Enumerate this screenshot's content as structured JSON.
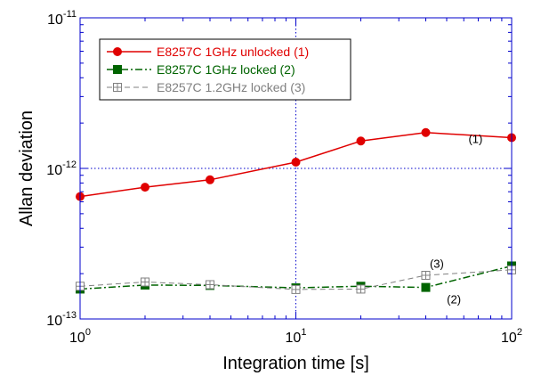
{
  "chart_data": {
    "type": "line",
    "xlabel": "Integration time [s]",
    "ylabel": "Allan deviation",
    "x_scale": "log",
    "y_scale": "log",
    "xlim": [
      1,
      100
    ],
    "ylim": [
      1e-13,
      1e-11
    ],
    "x_ticks": [
      {
        "base": "10",
        "exp": "0"
      },
      {
        "base": "10",
        "exp": "1"
      },
      {
        "base": "10",
        "exp": "2"
      }
    ],
    "y_ticks": [
      {
        "base": "10",
        "exp": "-13"
      },
      {
        "base": "10",
        "exp": "-12"
      },
      {
        "base": "10",
        "exp": "-11"
      }
    ],
    "grid": "dotted lines at x=10 and y=1e-12",
    "legend_position": "top-left",
    "series": [
      {
        "name": "E8257C 1GHz unlocked (1)",
        "color": "#e00000",
        "marker": "filled-circle",
        "x": [
          1,
          2,
          4,
          10,
          20,
          40,
          100
        ],
        "y": [
          6.5e-13,
          7.5e-13,
          8.4e-13,
          1.1e-12,
          1.52e-12,
          1.73e-12,
          1.6e-12
        ]
      },
      {
        "name": "E8257C 1GHz locked (2)",
        "color": "#006400",
        "marker": "filled-square",
        "x": [
          1,
          2,
          4,
          10,
          20,
          40,
          100
        ],
        "y": [
          1.58e-13,
          1.68e-13,
          1.67e-13,
          1.61e-13,
          1.65e-13,
          1.62e-13,
          2.25e-13
        ]
      },
      {
        "name": "E8257C 1.2GHz locked (3)",
        "color": "#808080",
        "marker": "open-square-cross",
        "x": [
          1,
          2,
          4,
          10,
          20,
          40,
          100
        ],
        "y": [
          1.65e-13,
          1.76e-13,
          1.69e-13,
          1.57e-13,
          1.58e-13,
          1.95e-13,
          2.12e-13
        ]
      }
    ],
    "annotations": [
      {
        "text": "(1)",
        "x": 68,
        "y": 1.58e-12
      },
      {
        "text": "(2)",
        "x": 54,
        "y": 1.36e-13
      },
      {
        "text": "(3)",
        "x": 45,
        "y": 2.35e-13
      }
    ]
  }
}
